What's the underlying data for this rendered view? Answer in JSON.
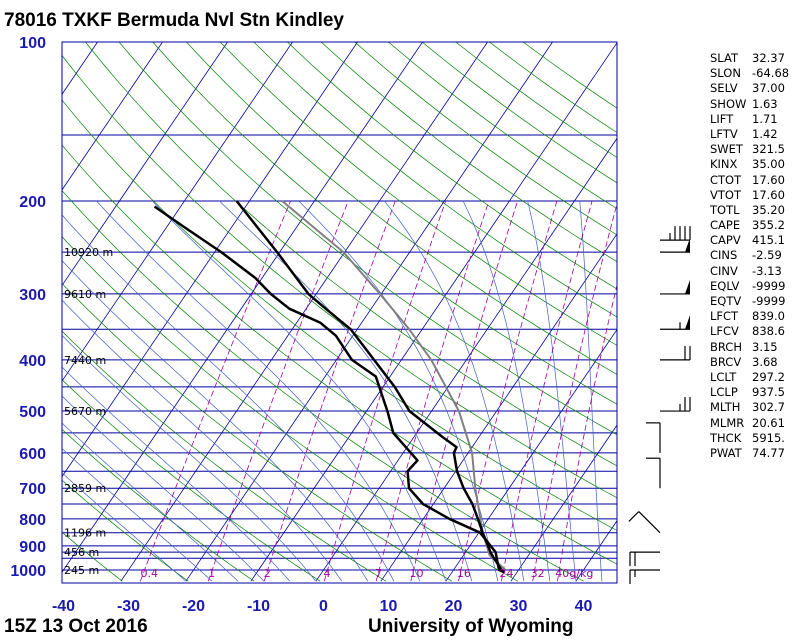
{
  "header": {
    "title": "78016 TXKF Bermuda Nvl Stn Kindley"
  },
  "footer": {
    "time": "15Z 13 Oct 2016",
    "source": "University of Wyoming"
  },
  "colors": {
    "axis_text": "#1a1ab0",
    "isobar": "#0000a0",
    "isotherm": "#0000a0",
    "dry_adiabat": "#008000",
    "moist_adiabat": "#4060c0",
    "mixing_ratio": "#a000a0",
    "sounding": "#000000",
    "parcel": "#808080"
  },
  "indices": [
    {
      "name": "SLAT",
      "value": "32.37"
    },
    {
      "name": "SLON",
      "value": "-64.68"
    },
    {
      "name": "SELV",
      "value": "37.00"
    },
    {
      "name": "SHOW",
      "value": "1.63"
    },
    {
      "name": "LIFT",
      "value": "1.71"
    },
    {
      "name": "LFTV",
      "value": "1.42"
    },
    {
      "name": "SWET",
      "value": "321.5"
    },
    {
      "name": "KINX",
      "value": "35.00"
    },
    {
      "name": "CTOT",
      "value": "17.60"
    },
    {
      "name": "VTOT",
      "value": "17.60"
    },
    {
      "name": "TOTL",
      "value": "35.20"
    },
    {
      "name": "CAPE",
      "value": "355.2"
    },
    {
      "name": "CAPV",
      "value": "415.1"
    },
    {
      "name": "CINS",
      "value": "-2.59"
    },
    {
      "name": "CINV",
      "value": "-3.13"
    },
    {
      "name": "EQLV",
      "value": "-9999"
    },
    {
      "name": "EQTV",
      "value": "-9999"
    },
    {
      "name": "LFCT",
      "value": "839.0"
    },
    {
      "name": "LFCV",
      "value": "838.6"
    },
    {
      "name": "BRCH",
      "value": "3.15"
    },
    {
      "name": "BRCV",
      "value": "3.68"
    },
    {
      "name": "LCLT",
      "value": "297.2"
    },
    {
      "name": "LCLP",
      "value": "937.5"
    },
    {
      "name": "MLTH",
      "value": "302.7"
    },
    {
      "name": "MLMR",
      "value": "20.61"
    },
    {
      "name": "THCK",
      "value": "5915."
    },
    {
      "name": "PWAT",
      "value": "74.77"
    }
  ],
  "chart_data": {
    "type": "line",
    "subtype": "skew-t log-p",
    "x_ticks": [
      "-40",
      "-30",
      "-20",
      "-10",
      "0",
      "10",
      "20",
      "30",
      "40"
    ],
    "xlim": [
      -40,
      45
    ],
    "y_ticks": [
      {
        "p": 100,
        "label": "100"
      },
      {
        "p": 200,
        "label": "200"
      },
      {
        "p": 300,
        "label": "300"
      },
      {
        "p": 400,
        "label": "400"
      },
      {
        "p": 500,
        "label": "500"
      },
      {
        "p": 600,
        "label": "600"
      },
      {
        "p": 700,
        "label": "700"
      },
      {
        "p": 800,
        "label": "800"
      },
      {
        "p": 900,
        "label": "900"
      },
      {
        "p": 1000,
        "label": "1000"
      }
    ],
    "ylim": [
      1050,
      100
    ],
    "y_scale": "log",
    "height_labels": [
      {
        "p": 1000,
        "label": "245 m"
      },
      {
        "p": 925,
        "label": "456 m"
      },
      {
        "p": 850,
        "label": "1196 m"
      },
      {
        "p": 700,
        "label": "2859 m"
      },
      {
        "p": 500,
        "label": "5670 m"
      },
      {
        "p": 400,
        "label": "7440 m"
      },
      {
        "p": 300,
        "label": "9610 m"
      },
      {
        "p": 250,
        "label": "10920 m"
      }
    ],
    "mixing_ratio_labels": [
      {
        "w": 0.4,
        "label": "0.4"
      },
      {
        "w": 1,
        "label": "1"
      },
      {
        "w": 2,
        "label": "2"
      },
      {
        "w": 4,
        "label": "4"
      },
      {
        "w": 7,
        "label": "7"
      },
      {
        "w": 10,
        "label": "10"
      },
      {
        "w": 16,
        "label": "16"
      },
      {
        "w": 24,
        "label": "24"
      },
      {
        "w": 32,
        "label": "32"
      },
      {
        "w": 40,
        "label": "40g/kg"
      }
    ],
    "temperature": [
      {
        "p": 1009,
        "t": 28.0
      },
      {
        "p": 1000,
        "t": 27.4
      },
      {
        "p": 950,
        "t": 25.0
      },
      {
        "p": 925,
        "t": 23.8
      },
      {
        "p": 900,
        "t": 22.8
      },
      {
        "p": 850,
        "t": 20.6
      },
      {
        "p": 800,
        "t": 18.4
      },
      {
        "p": 750,
        "t": 16.0
      },
      {
        "p": 700,
        "t": 13.0
      },
      {
        "p": 650,
        "t": 10.2
      },
      {
        "p": 600,
        "t": 7.8
      },
      {
        "p": 585,
        "t": 7.6
      },
      {
        "p": 560,
        "t": 4.4
      },
      {
        "p": 500,
        "t": -3.4
      },
      {
        "p": 450,
        "t": -8.2
      },
      {
        "p": 400,
        "t": -14.2
      },
      {
        "p": 350,
        "t": -21.0
      },
      {
        "p": 320,
        "t": -27.0
      },
      {
        "p": 300,
        "t": -31.2
      },
      {
        "p": 250,
        "t": -40.4
      },
      {
        "p": 200,
        "t": -52.0
      }
    ],
    "dewpoint": [
      {
        "p": 1009,
        "t": 28.0
      },
      {
        "p": 1000,
        "t": 27.0
      },
      {
        "p": 925,
        "t": 24.6
      },
      {
        "p": 850,
        "t": 20.2
      },
      {
        "p": 800,
        "t": 14.0
      },
      {
        "p": 750,
        "t": 8.4
      },
      {
        "p": 700,
        "t": 4.6
      },
      {
        "p": 650,
        "t": 2.6
      },
      {
        "p": 620,
        "t": 3.0
      },
      {
        "p": 550,
        "t": -3.6
      },
      {
        "p": 500,
        "t": -6.8
      },
      {
        "p": 430,
        "t": -12.2
      },
      {
        "p": 400,
        "t": -17.6
      },
      {
        "p": 360,
        "t": -22.6
      },
      {
        "p": 340,
        "t": -26.4
      },
      {
        "p": 320,
        "t": -32.6
      },
      {
        "p": 300,
        "t": -37.0
      },
      {
        "p": 280,
        "t": -41.0
      },
      {
        "p": 250,
        "t": -49.0
      },
      {
        "p": 225,
        "t": -57.0
      },
      {
        "p": 205,
        "t": -64.0
      }
    ],
    "parcel": [
      {
        "p": 1000,
        "t": 28.0
      },
      {
        "p": 937.5,
        "t": 24.0
      },
      {
        "p": 850,
        "t": 20.6
      },
      {
        "p": 700,
        "t": 14.8
      },
      {
        "p": 600,
        "t": 10.6
      },
      {
        "p": 500,
        "t": 4.2
      },
      {
        "p": 400,
        "t": -5.4
      },
      {
        "p": 350,
        "t": -12.0
      },
      {
        "p": 300,
        "t": -20.2
      },
      {
        "p": 250,
        "t": -30.2
      },
      {
        "p": 200,
        "t": -45.0
      }
    ],
    "wind_barbs": [
      {
        "p": 1000,
        "dir": 90,
        "spd": 15
      },
      {
        "p": 925,
        "dir": 90,
        "spd": 20
      },
      {
        "p": 850,
        "dir": 135,
        "spd": 10
      },
      {
        "p": 700,
        "dir": 180,
        "spd": 10
      },
      {
        "p": 600,
        "dir": 180,
        "spd": 10
      },
      {
        "p": 500,
        "dir": 270,
        "spd": 25
      },
      {
        "p": 400,
        "dir": 270,
        "spd": 20
      },
      {
        "p": 350,
        "dir": 270,
        "spd": 55
      },
      {
        "p": 300,
        "dir": 270,
        "spd": 50
      },
      {
        "p": 250,
        "dir": 270,
        "spd": 50
      },
      {
        "p": 250,
        "dir": 270,
        "spd": 45
      }
    ]
  }
}
